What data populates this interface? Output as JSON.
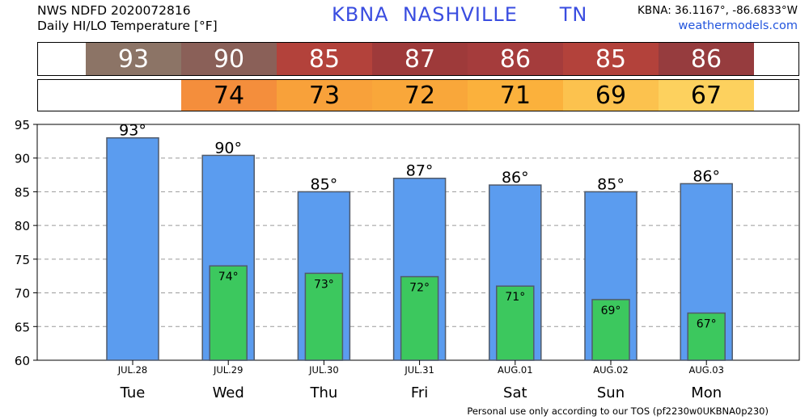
{
  "header": {
    "line1": "NWS NDFD 2020072816",
    "line2": "Daily HI/LO Temperature [°F]",
    "station_code": "KBNA",
    "city": "NASHVILLE",
    "state": "TN",
    "coords": "KBNA: 36.1167°, -86.6833°W",
    "site": "weathermodels.com"
  },
  "hi_strip": {
    "cells": [
      {
        "value": "",
        "color": "#ffffff"
      },
      {
        "value": "93",
        "color": "#8c7466"
      },
      {
        "value": "90",
        "color": "#8a6058"
      },
      {
        "value": "85",
        "color": "#b3423b"
      },
      {
        "value": "87",
        "color": "#9e3a3a"
      },
      {
        "value": "86",
        "color": "#a53c3c"
      },
      {
        "value": "85",
        "color": "#b3423b"
      },
      {
        "value": "86",
        "color": "#963c3e"
      },
      {
        "value": "",
        "color": "#ffffff"
      }
    ]
  },
  "lo_strip": {
    "cells": [
      {
        "value": "",
        "color": "#ffffff"
      },
      {
        "value": "",
        "color": "#ffffff"
      },
      {
        "value": "74",
        "color": "#f48e3c"
      },
      {
        "value": "73",
        "color": "#f8a13a"
      },
      {
        "value": "72",
        "color": "#f9a73a"
      },
      {
        "value": "71",
        "color": "#fbb13c"
      },
      {
        "value": "69",
        "color": "#fcc24e"
      },
      {
        "value": "67",
        "color": "#fdd15e"
      },
      {
        "value": "",
        "color": "#ffffff"
      }
    ]
  },
  "chart_data": {
    "type": "bar",
    "categories": [
      "Tue",
      "Wed",
      "Thu",
      "Fri",
      "Sat",
      "Sun",
      "Mon"
    ],
    "dates": [
      "JUL.28",
      "JUL.29",
      "JUL.30",
      "JUL.31",
      "AUG.01",
      "AUG.02",
      "AUG.03"
    ],
    "series": [
      {
        "values": [
          93,
          90.4,
          85,
          87,
          86,
          85,
          86.2
        ],
        "labels": [
          "93°",
          "90°",
          "85°",
          "87°",
          "86°",
          "85°",
          "86°"
        ],
        "color": "#5b9cef"
      },
      {
        "values": [
          null,
          74,
          72.9,
          72.4,
          71,
          69,
          67
        ],
        "labels": [
          "",
          "74°",
          "73°",
          "72°",
          "71°",
          "69°",
          "67°"
        ],
        "color": "#3cc85e"
      }
    ],
    "ylim": [
      60,
      95
    ],
    "yticks": [
      "60",
      "65",
      "70",
      "75",
      "80",
      "85",
      "90",
      "95"
    ],
    "grid": true
  },
  "footer": "Personal use only according to our TOS (pf2230w0UKBNA0p230)"
}
